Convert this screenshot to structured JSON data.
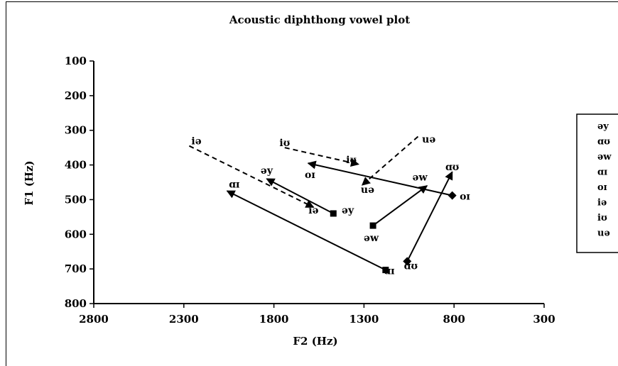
{
  "chart_data": {
    "type": "line",
    "title": "Acoustic diphthong vowel plot",
    "xlabel": "F2 (Hz)",
    "ylabel": "F1 (Hz)",
    "x_axis_reversed": true,
    "y_axis_reversed": true,
    "xlim": [
      2800,
      300
    ],
    "ylim": [
      100,
      800
    ],
    "xticks": [
      2800,
      2300,
      1800,
      1300,
      800,
      300
    ],
    "yticks": [
      100,
      200,
      300,
      400,
      500,
      600,
      700,
      800
    ],
    "grid": false,
    "legend_position": "right",
    "legend": [
      "əy",
      "ɑʊ",
      "əw",
      "ɑɪ",
      "oɪ",
      "iə",
      "iʊ",
      "uə"
    ],
    "series": [
      {
        "label": "əy",
        "line": "solid",
        "marker": "square",
        "start": {
          "x": 1470,
          "y": 540
        },
        "end": {
          "x": 1840,
          "y": 440
        }
      },
      {
        "label": "ɑʊ",
        "line": "solid",
        "marker": "diamond",
        "start": {
          "x": 1060,
          "y": 678
        },
        "end": {
          "x": 810,
          "y": 420
        }
      },
      {
        "label": "əw",
        "line": "solid",
        "marker": "square",
        "start": {
          "x": 1250,
          "y": 575
        },
        "end": {
          "x": 950,
          "y": 460
        }
      },
      {
        "label": "ɑɪ",
        "line": "solid",
        "marker": "square",
        "start": {
          "x": 1180,
          "y": 703
        },
        "end": {
          "x": 2060,
          "y": 475
        }
      },
      {
        "label": "oɪ",
        "line": "solid",
        "marker": "diamond",
        "start": {
          "x": 810,
          "y": 488
        },
        "end": {
          "x": 1610,
          "y": 395
        }
      },
      {
        "label": "iə",
        "line": "dashed",
        "marker": "none",
        "start": {
          "x": 2270,
          "y": 345
        },
        "end": {
          "x": 1580,
          "y": 522
        }
      },
      {
        "label": "iʊ",
        "line": "dashed",
        "marker": "none",
        "start": {
          "x": 1740,
          "y": 350
        },
        "end": {
          "x": 1330,
          "y": 398
        }
      },
      {
        "label": "uə",
        "line": "dashed",
        "marker": "none",
        "start": {
          "x": 1000,
          "y": 318
        },
        "end": {
          "x": 1310,
          "y": 458
        }
      }
    ],
    "point_labels": [
      {
        "text": "iə",
        "x": 2230,
        "y": 330
      },
      {
        "text": "iʊ",
        "x": 1740,
        "y": 335
      },
      {
        "text": "uə",
        "x": 940,
        "y": 325
      },
      {
        "text": "iʊ",
        "x": 1370,
        "y": 385
      },
      {
        "text": "əy",
        "x": 1840,
        "y": 415
      },
      {
        "text": "oɪ",
        "x": 1600,
        "y": 427
      },
      {
        "text": "əw",
        "x": 990,
        "y": 435
      },
      {
        "text": "ɑʊ",
        "x": 810,
        "y": 405
      },
      {
        "text": "ɑɪ",
        "x": 2020,
        "y": 455
      },
      {
        "text": "uə",
        "x": 1280,
        "y": 470
      },
      {
        "text": "oɪ",
        "x": 740,
        "y": 490
      },
      {
        "text": "iə",
        "x": 1580,
        "y": 530
      },
      {
        "text": "əy",
        "x": 1390,
        "y": 530
      },
      {
        "text": "əw",
        "x": 1260,
        "y": 610
      },
      {
        "text": "ɑɪ",
        "x": 1160,
        "y": 705
      },
      {
        "text": "ɑʊ",
        "x": 1040,
        "y": 690
      }
    ]
  }
}
